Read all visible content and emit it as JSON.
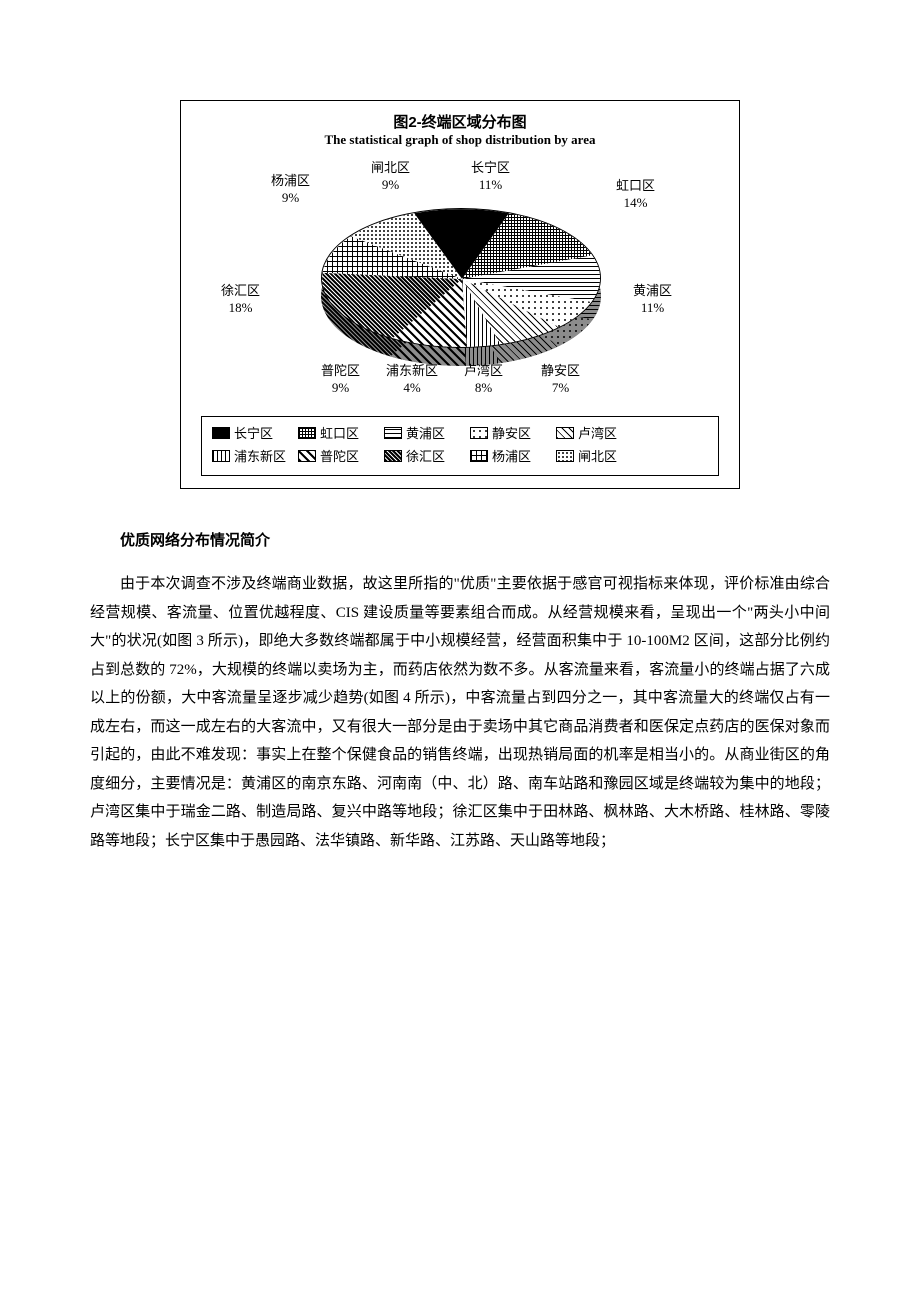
{
  "chart": {
    "type": "pie-3d",
    "title": "图2-终端区域分布图",
    "subtitle": "The statistical graph of shop distribution by area",
    "title_fontsize": 15,
    "subtitle_fontsize": 13,
    "background_color": "#ffffff",
    "border_color": "#000000",
    "slices": [
      {
        "name": "长宁区",
        "pct": 11,
        "pattern": "solid-black",
        "fill": "#000000"
      },
      {
        "name": "虹口区",
        "pct": 14,
        "pattern": "dense-grid",
        "fill": "#888888"
      },
      {
        "name": "黄浦区",
        "pct": 11,
        "pattern": "horizontal-lines",
        "fill": "#aaaaaa"
      },
      {
        "name": "静安区",
        "pct": 7,
        "pattern": "sparse-dots",
        "fill": "#ffffff"
      },
      {
        "name": "卢湾区",
        "pct": 8,
        "pattern": "diagonal-cross",
        "fill": "#ffffff"
      },
      {
        "name": "浦东新区",
        "pct": 4,
        "pattern": "vertical-lines",
        "fill": "#ffffff"
      },
      {
        "name": "普陀区",
        "pct": 9,
        "pattern": "diamond-checker",
        "fill": "#ffffff"
      },
      {
        "name": "徐汇区",
        "pct": 18,
        "pattern": "dense-diagonal",
        "fill": "#444444"
      },
      {
        "name": "杨浦区",
        "pct": 9,
        "pattern": "crosshatch",
        "fill": "#ffffff"
      },
      {
        "name": "闸北区",
        "pct": 9,
        "pattern": "tiny-dots",
        "fill": "#ffffff"
      }
    ],
    "label_fontsize": 13,
    "legend_items": [
      "长宁区",
      "虹口区",
      "黄浦区",
      "静安区",
      "卢湾区",
      "浦东新区",
      "普陀区",
      "徐汇区",
      "杨浦区",
      "闸北区"
    ],
    "legend_markers": [
      "■",
      "▦",
      "▤",
      "□",
      "▧",
      "▥",
      "▨",
      "▩",
      "▣",
      "▫"
    ]
  },
  "heading": "优质网络分布情况简介",
  "body": "由于本次调查不涉及终端商业数据，故这里所指的\"优质\"主要依据于感官可视指标来体现，评价标准由综合经营规模、客流量、位置优越程度、CIS 建设质量等要素组合而成。从经营规模来看，呈现出一个\"两头小中间大\"的状况(如图 3 所示)，即绝大多数终端都属于中小规模经营，经营面积集中于 10-100M2 区间，这部分比例约占到总数的 72%，大规模的终端以卖场为主，而药店依然为数不多。从客流量来看，客流量小的终端占据了六成以上的份额，大中客流量呈逐步减少趋势(如图 4 所示)，中客流量占到四分之一，其中客流量大的终端仅占有一成左右，而这一成左右的大客流中，又有很大一部分是由于卖场中其它商品消费者和医保定点药店的医保对象而引起的，由此不难发现：事实上在整个保健食品的销售终端，出现热销局面的机率是相当小的。从商业街区的角度细分，主要情况是：黄浦区的南京东路、河南南（中、北）路、南车站路和豫园区域是终端较为集中的地段；卢湾区集中于瑞金二路、制造局路、复兴中路等地段；徐汇区集中于田林路、枫林路、大木桥路、桂林路、零陵路等地段；长宁区集中于愚园路、法华镇路、新华路、江苏路、天山路等地段；"
}
